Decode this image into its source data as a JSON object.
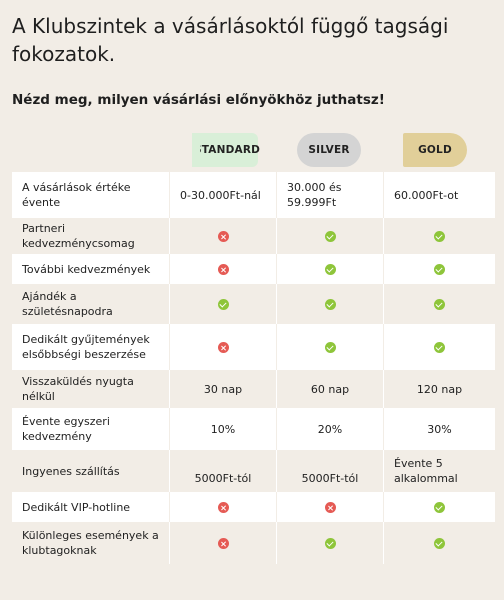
{
  "title": "A Klubszintek a vásárlásoktól függő tagsági fokozatok.",
  "subtitle": "Nézd meg, milyen vásárlási előnyökhöz juthatsz!",
  "tiers": [
    {
      "label": "STANDARD",
      "color": "#d9efd8"
    },
    {
      "label": "SILVER",
      "color": "#d4d4d4"
    },
    {
      "label": "GOLD",
      "color": "#e1cf99"
    }
  ],
  "rows": [
    {
      "label": "A vásárlások értéke évente",
      "values": [
        "0-30.000Ft-nál",
        "30.000 és 59.999Ft",
        "60.000Ft-ot"
      ]
    },
    {
      "label": "Partneri kedvezménycsomag",
      "values": [
        "no",
        "yes",
        "yes"
      ]
    },
    {
      "label": "További kedvezmények",
      "values": [
        "no",
        "yes",
        "yes"
      ]
    },
    {
      "label": "Ajándék a születésnapodra",
      "values": [
        "yes",
        "yes",
        "yes"
      ]
    },
    {
      "label": "Dedikált gyűjtemények elsőbbségi beszerzése",
      "values": [
        "no",
        "yes",
        "yes"
      ]
    },
    {
      "label": "Visszaküldés nyugta nélkül",
      "values": [
        "30 nap",
        "60 nap",
        "120 nap"
      ]
    },
    {
      "label": "Évente egyszeri kedvezmény",
      "values": [
        "10%",
        "20%",
        "30%"
      ]
    },
    {
      "label": "Ingyenes szállítás",
      "values": [
        "5000Ft-tól",
        "5000Ft-tól",
        "Évente 5 alkalommal"
      ]
    },
    {
      "label": "Dedikált VIP-hotline",
      "values": [
        "no",
        "no",
        "yes"
      ]
    },
    {
      "label": "Különleges események a klubtagoknak",
      "values": [
        "no",
        "yes",
        "yes"
      ]
    }
  ]
}
